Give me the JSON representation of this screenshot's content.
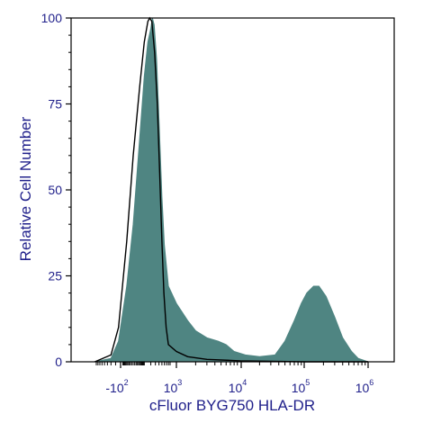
{
  "chart_data": {
    "type": "area",
    "title": "",
    "xlabel": "cFluor BYG750 HLA-DR",
    "ylabel": "Relative Cell Number",
    "ylim": [
      0,
      100
    ],
    "y_ticks": [
      "0",
      "25",
      "50",
      "75",
      "100"
    ],
    "x_scale": "biexponential",
    "x_ticks": [
      {
        "base": "-10",
        "exp": "2"
      },
      {
        "base": "10",
        "exp": "3"
      },
      {
        "base": "10",
        "exp": "4"
      },
      {
        "base": "10",
        "exp": "5"
      },
      {
        "base": "10",
        "exp": "6"
      }
    ],
    "grid": false,
    "series": [
      {
        "role": "sample",
        "style": "filled",
        "color": "#4f8582",
        "points": [
          [
            -1000,
            0
          ],
          [
            -300,
            1
          ],
          [
            -150,
            6
          ],
          [
            -50,
            22
          ],
          [
            0,
            40
          ],
          [
            50,
            65
          ],
          [
            100,
            83
          ],
          [
            150,
            93
          ],
          [
            200,
            97
          ],
          [
            230,
            100
          ],
          [
            270,
            98
          ],
          [
            330,
            88
          ],
          [
            400,
            70
          ],
          [
            500,
            48
          ],
          [
            600,
            34
          ],
          [
            800,
            22
          ],
          [
            1000,
            17
          ],
          [
            1500,
            12
          ],
          [
            2000,
            9
          ],
          [
            3000,
            7
          ],
          [
            4500,
            6
          ],
          [
            6000,
            5
          ],
          [
            8000,
            3
          ],
          [
            12000,
            2
          ],
          [
            20000,
            1.5
          ],
          [
            35000,
            2
          ],
          [
            50000,
            6
          ],
          [
            70000,
            12
          ],
          [
            90000,
            17
          ],
          [
            110000,
            20
          ],
          [
            140000,
            22
          ],
          [
            170000,
            22
          ],
          [
            220000,
            19
          ],
          [
            300000,
            13
          ],
          [
            400000,
            7
          ],
          [
            550000,
            3
          ],
          [
            700000,
            1
          ],
          [
            1000000,
            0
          ]
        ]
      },
      {
        "role": "control",
        "style": "outline",
        "color": "#000000",
        "points": [
          [
            -1000,
            0
          ],
          [
            -300,
            2
          ],
          [
            -150,
            10
          ],
          [
            -50,
            35
          ],
          [
            0,
            60
          ],
          [
            50,
            80
          ],
          [
            100,
            93
          ],
          [
            150,
            99
          ],
          [
            180,
            100
          ],
          [
            220,
            99
          ],
          [
            280,
            90
          ],
          [
            350,
            75
          ],
          [
            420,
            55
          ],
          [
            500,
            35
          ],
          [
            580,
            20
          ],
          [
            680,
            10
          ],
          [
            800,
            5
          ],
          [
            1000,
            3
          ],
          [
            1500,
            1.5
          ],
          [
            3000,
            0.7
          ],
          [
            10000,
            0.3
          ],
          [
            100000,
            0
          ],
          [
            1000000,
            0
          ]
        ]
      }
    ]
  }
}
